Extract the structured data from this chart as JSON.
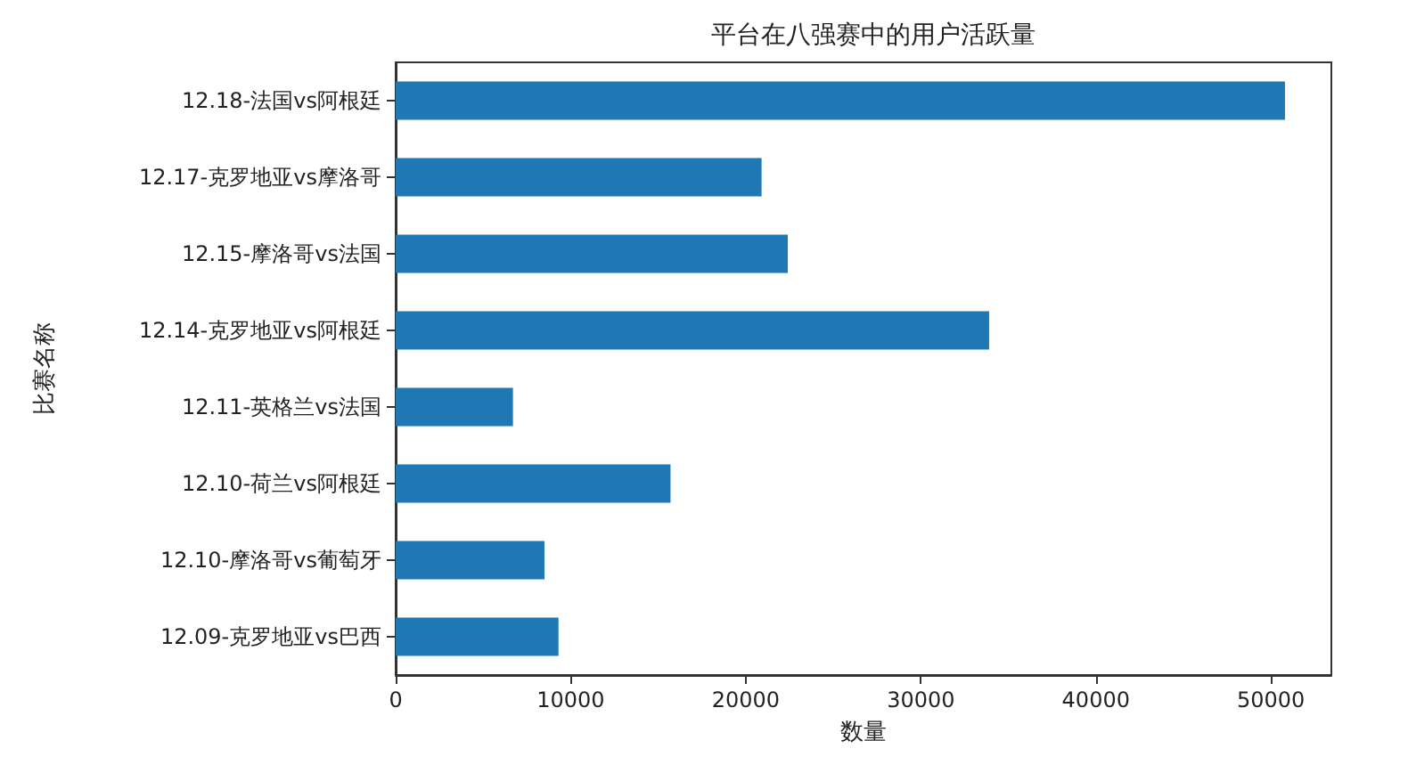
{
  "chart_data": {
    "type": "bar",
    "orientation": "horizontal",
    "title": "平台在八强赛中的用户活跃量",
    "xlabel": "数量",
    "ylabel": "比赛名称",
    "categories": [
      "12.18-法国vs阿根廷",
      "12.17-克罗地亚vs摩洛哥",
      "12.15-摩洛哥vs法国",
      "12.14-克罗地亚vs阿根廷",
      "12.11-英格兰vs法国",
      "12.10-荷兰vs阿根廷",
      "12.10-摩洛哥vs葡萄牙",
      "12.09-克罗地亚vs巴西"
    ],
    "values": [
      50800,
      20900,
      22400,
      33900,
      6700,
      15700,
      8500,
      9300
    ],
    "color": "#1f77b4",
    "xlim": [
      0,
      53450
    ],
    "xticks": [
      0,
      10000,
      20000,
      30000,
      40000,
      50000
    ],
    "grid": false
  }
}
